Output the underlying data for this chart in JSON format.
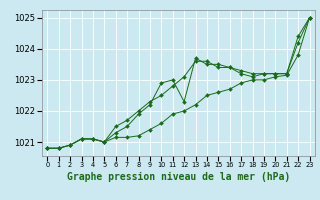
{
  "background_color": "#cce8f0",
  "grid_color": "#ffffff",
  "line_color": "#1a6b1a",
  "marker_color": "#1a6b1a",
  "title": "Graphe pression niveau de la mer (hPa)",
  "title_fontsize": 7.0,
  "ylim": [
    1020.55,
    1025.25
  ],
  "xlim": [
    -0.5,
    23.5
  ],
  "yticks": [
    1021,
    1022,
    1023,
    1024,
    1025
  ],
  "xticks": [
    0,
    1,
    2,
    3,
    4,
    5,
    6,
    7,
    8,
    9,
    10,
    11,
    12,
    13,
    14,
    15,
    16,
    17,
    18,
    19,
    20,
    21,
    22,
    23
  ],
  "series1_x": [
    0,
    1,
    2,
    3,
    4,
    5,
    6,
    7,
    8,
    9,
    10,
    11,
    12,
    13,
    14,
    15,
    16,
    17,
    18,
    19,
    20,
    21,
    22,
    23
  ],
  "series1_y": [
    1020.8,
    1020.8,
    1020.9,
    1021.1,
    1021.1,
    1021.0,
    1021.5,
    1021.7,
    1022.0,
    1022.3,
    1022.5,
    1022.8,
    1023.1,
    1023.6,
    1023.6,
    1023.4,
    1023.4,
    1023.3,
    1023.2,
    1023.2,
    1023.2,
    1023.2,
    1024.4,
    1025.0
  ],
  "series2_x": [
    0,
    1,
    2,
    3,
    4,
    5,
    6,
    7,
    8,
    9,
    10,
    11,
    12,
    13,
    14,
    15,
    16,
    17,
    18,
    19,
    20,
    21,
    22,
    23
  ],
  "series2_y": [
    1020.8,
    1020.8,
    1020.9,
    1021.1,
    1021.1,
    1021.0,
    1021.3,
    1021.5,
    1021.9,
    1022.2,
    1022.9,
    1023.0,
    1022.3,
    1023.7,
    1023.5,
    1023.5,
    1023.4,
    1023.2,
    1023.1,
    1023.2,
    1023.2,
    1023.2,
    1024.2,
    1025.0
  ],
  "series3_x": [
    0,
    1,
    2,
    3,
    4,
    5,
    6,
    7,
    8,
    9,
    10,
    11,
    12,
    13,
    14,
    15,
    16,
    17,
    18,
    19,
    20,
    21,
    22,
    23
  ],
  "series3_y": [
    1020.8,
    1020.8,
    1020.9,
    1021.1,
    1021.1,
    1021.0,
    1021.15,
    1021.15,
    1021.2,
    1021.4,
    1021.6,
    1021.9,
    1022.0,
    1022.2,
    1022.5,
    1022.6,
    1022.7,
    1022.9,
    1023.0,
    1023.0,
    1023.1,
    1023.15,
    1023.8,
    1025.0
  ]
}
